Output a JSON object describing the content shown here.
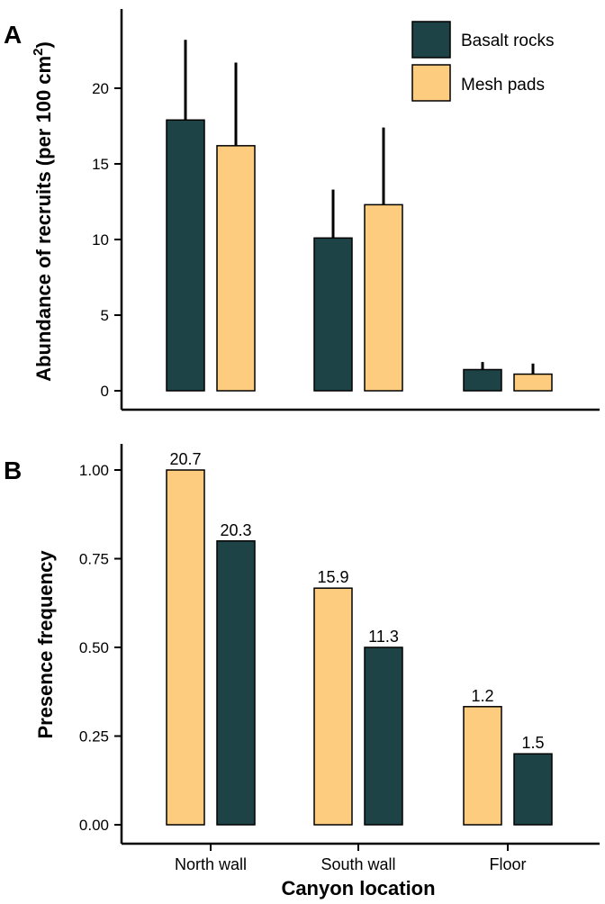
{
  "colors": {
    "basalt": "#1e4346",
    "mesh": "#fdcc7f",
    "stroke": "#000000"
  },
  "chart_data": [
    {
      "type": "bar",
      "panel_label": "A",
      "ylabel": "Abundance of recruits (per 100 cm",
      "ylabel_superscript": "2",
      "ylabel_close": ")",
      "ylim": [
        0,
        25
      ],
      "yticks": [
        0,
        5,
        10,
        15,
        20
      ],
      "categories": [
        "North wall",
        "South wall",
        "Floor"
      ],
      "series": [
        {
          "name": "Basalt rocks",
          "color_key": "basalt",
          "values": [
            17.9,
            10.1,
            1.4
          ],
          "error_upper": [
            23.2,
            13.3,
            1.9
          ]
        },
        {
          "name": "Mesh pads",
          "color_key": "mesh",
          "values": [
            16.2,
            12.3,
            1.1
          ],
          "error_upper": [
            21.7,
            17.4,
            1.8
          ]
        }
      ],
      "legend": {
        "placement": "top-right"
      }
    },
    {
      "type": "bar",
      "panel_label": "B",
      "xlabel": "Canyon location",
      "ylabel": "Presence frequency",
      "ylim": [
        0,
        1.05
      ],
      "yticks": [
        "0.00",
        "0.25",
        "0.50",
        "0.75",
        "1.00"
      ],
      "categories": [
        "North wall",
        "South wall",
        "Floor"
      ],
      "series": [
        {
          "name": "Mesh pads",
          "color_key": "mesh",
          "values": [
            1.0,
            0.667,
            0.333
          ],
          "data_labels": [
            "20.7",
            "15.9",
            "1.2"
          ]
        },
        {
          "name": "Basalt rocks",
          "color_key": "basalt",
          "values": [
            0.8,
            0.5,
            0.2
          ],
          "data_labels": [
            "20.3",
            "11.3",
            "1.5"
          ]
        }
      ]
    }
  ]
}
